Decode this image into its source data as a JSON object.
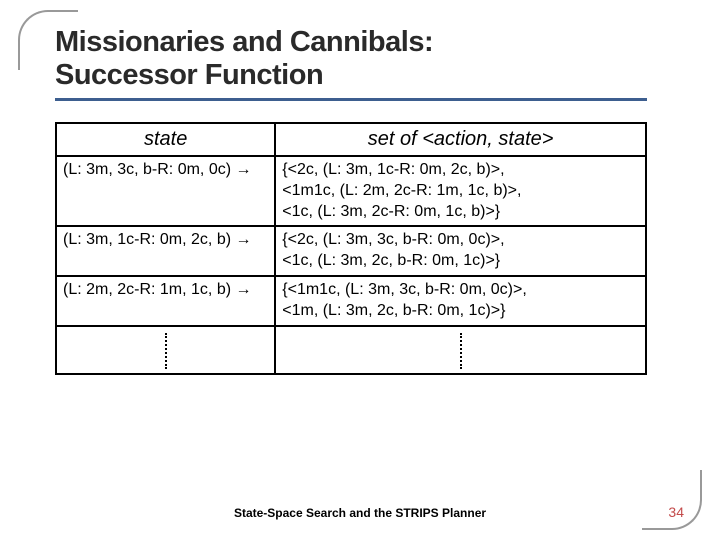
{
  "title_line1": "Missionaries and Cannibals:",
  "title_line2": "Successor Function",
  "table": {
    "header_state": "state",
    "header_set": "set of <action, state>",
    "rows": [
      {
        "state": "(L: 3m, 3c, b-R: 0m, 0c) →",
        "set": "{<2c, (L: 3m, 1c-R: 0m, 2c, b)>,\n<1m1c, (L: 2m, 2c-R: 1m, 1c, b)>,\n<1c, (L: 3m, 2c-R: 0m, 1c, b)>}"
      },
      {
        "state": "(L: 3m, 1c-R: 0m, 2c, b) →",
        "set": "{<2c, (L: 3m, 3c, b-R: 0m, 0c)>,\n<1c, (L: 3m, 2c, b-R: 0m, 1c)>}"
      },
      {
        "state": "(L: 2m, 2c-R: 1m, 1c, b) →",
        "set": "{<1m1c, (L: 3m, 3c, b-R: 0m, 0c)>,\n<1m, (L: 3m, 2c, b-R: 0m, 1c)>}"
      }
    ]
  },
  "footer": "State-Space Search and the STRIPS Planner",
  "page_num": "34"
}
